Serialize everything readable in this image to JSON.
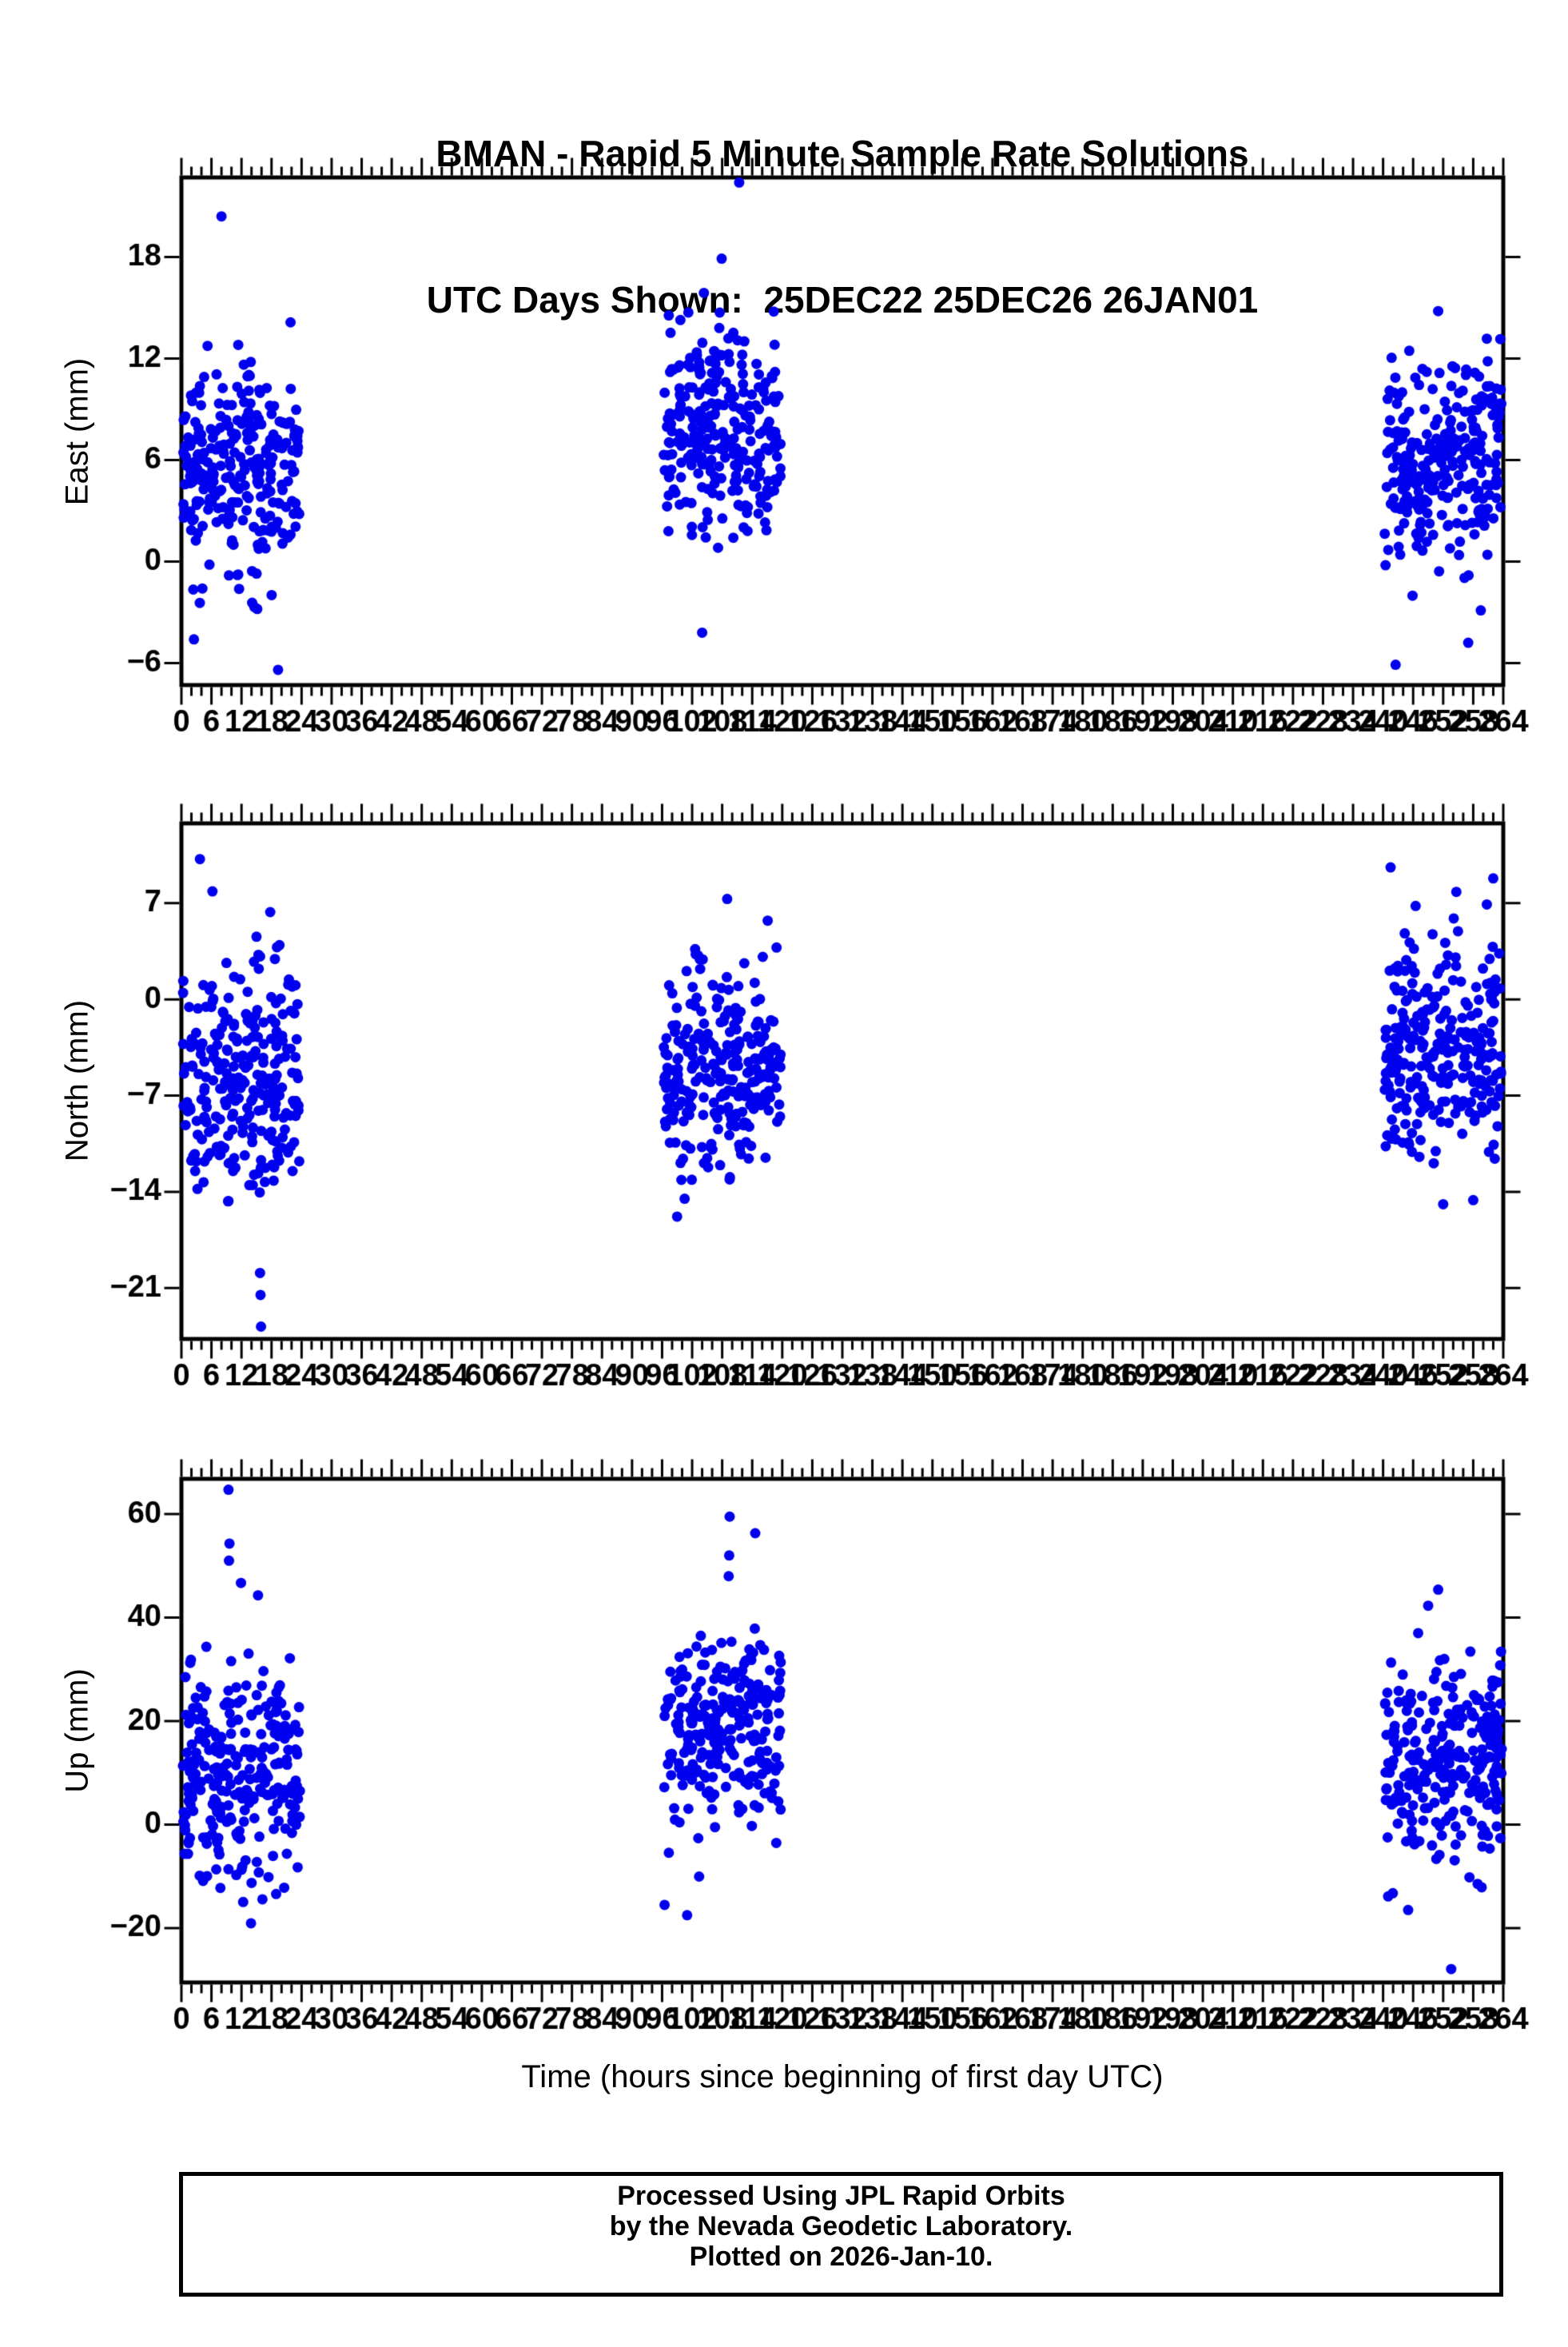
{
  "title": {
    "line1": "BMAN - Rapid 5 Minute Sample Rate Solutions",
    "line2": "UTC Days Shown:  25DEC22 25DEC26 26JAN01"
  },
  "x_axis_title": "Time (hours since beginning of first day UTC)",
  "footer": {
    "line1": "Processed Using JPL Rapid Orbits",
    "line2": "by the Nevada Geodetic Laboratory.",
    "line3": "Plotted on 2026-Jan-10."
  },
  "chart_data": {
    "type": "scatter",
    "point_color": "#0000EE",
    "point_radius": 6.5,
    "axis_color": "#000000",
    "x_axis": {
      "min": 0,
      "max": 264,
      "major_tick": 6,
      "minor_tick": 2
    },
    "sample_days_hour_ranges": [
      [
        0,
        24
      ],
      [
        96,
        120
      ],
      [
        240,
        264
      ]
    ],
    "panels": [
      {
        "id": "east",
        "ylabel": "East (mm)",
        "ylim": [
          -7.3,
          22.7
        ],
        "yticks": [
          18,
          12,
          6,
          0,
          -6
        ],
        "clusters": [
          {
            "x_range": [
              0,
              24
            ],
            "n": 270,
            "mean": 5.5,
            "std": 3.2,
            "clip": [
              -4.5,
              15.8
            ],
            "outliers": [
              [
                8.0,
                20.4
              ],
              [
                19.3,
                -6.4
              ],
              [
                2.5,
                -4.6
              ]
            ],
            "seed": 11
          },
          {
            "x_range": [
              96,
              120
            ],
            "n": 270,
            "mean": 7.8,
            "std": 3.4,
            "clip": [
              -3.5,
              16.2
            ],
            "outliers": [
              [
                111.4,
                22.4
              ],
              [
                107.9,
                17.9
              ],
              [
                104.0,
                -4.2
              ]
            ],
            "seed": 12
          },
          {
            "x_range": [
              240,
              264
            ],
            "n": 270,
            "mean": 5.8,
            "std": 3.0,
            "clip": [
              -4.8,
              13.5
            ],
            "outliers": [
              [
                251.0,
                14.8
              ],
              [
                242.5,
                -6.1
              ],
              [
                257.0,
                -4.8
              ]
            ],
            "seed": 13
          }
        ]
      },
      {
        "id": "north",
        "ylabel": "North (mm)",
        "ylim": [
          -24.7,
          12.8
        ],
        "yticks": [
          7,
          0,
          -7,
          -14,
          -21
        ],
        "clusters": [
          {
            "x_range": [
              0,
              24
            ],
            "n": 270,
            "mean": -5.5,
            "std": 4.6,
            "clip": [
              -15.5,
              9.8
            ],
            "outliers": [
              [
                15.7,
                -19.9
              ],
              [
                15.8,
                -21.5
              ],
              [
                15.9,
                -23.8
              ],
              [
                3.7,
                10.2
              ]
            ],
            "seed": 21
          },
          {
            "x_range": [
              96,
              120
            ],
            "n": 270,
            "mean": -5.2,
            "std": 4.0,
            "clip": [
              -13.5,
              7.8
            ],
            "outliers": [
              [
                99.0,
                -15.8
              ],
              [
                100.5,
                -14.5
              ],
              [
                109.0,
                7.3
              ]
            ],
            "seed": 22
          },
          {
            "x_range": [
              240,
              264
            ],
            "n": 270,
            "mean": -3.8,
            "std": 3.9,
            "clip": [
              -12.5,
              8.5
            ],
            "outliers": [
              [
                241.5,
                9.6
              ],
              [
                262.0,
                8.8
              ],
              [
                252.0,
                -14.9
              ],
              [
                258.0,
                -14.6
              ]
            ],
            "seed": 23
          }
        ]
      },
      {
        "id": "up",
        "ylabel": "Up (mm)",
        "ylim": [
          -30.5,
          66.8
        ],
        "yticks": [
          60,
          40,
          20,
          0,
          -20
        ],
        "clusters": [
          {
            "x_range": [
              0,
              24
            ],
            "n": 270,
            "mean": 11.0,
            "std": 11.0,
            "clip": [
              -23.0,
              40.0
            ],
            "outliers": [
              [
                9.4,
                64.7
              ],
              [
                9.6,
                54.3
              ],
              [
                9.5,
                51.0
              ],
              [
                11.9,
                46.7
              ],
              [
                15.3,
                44.3
              ]
            ],
            "seed": 31
          },
          {
            "x_range": [
              96,
              120
            ],
            "n": 270,
            "mean": 18.5,
            "std": 10.0,
            "clip": [
              -13.0,
              38.0
            ],
            "outliers": [
              [
                109.5,
                59.5
              ],
              [
                114.6,
                56.3
              ],
              [
                109.4,
                52.0
              ],
              [
                109.3,
                48.0
              ],
              [
                96.5,
                -15.5
              ],
              [
                101.0,
                -17.5
              ]
            ],
            "seed": 32
          },
          {
            "x_range": [
              240,
              264
            ],
            "n": 270,
            "mean": 13.0,
            "std": 9.5,
            "clip": [
              -14.5,
              36.0
            ],
            "outliers": [
              [
                253.6,
                -27.9
              ],
              [
                251.0,
                45.4
              ],
              [
                249.0,
                42.3
              ],
              [
                247.0,
                37.0
              ],
              [
                245.0,
                -16.5
              ]
            ],
            "seed": 33
          }
        ]
      }
    ]
  }
}
